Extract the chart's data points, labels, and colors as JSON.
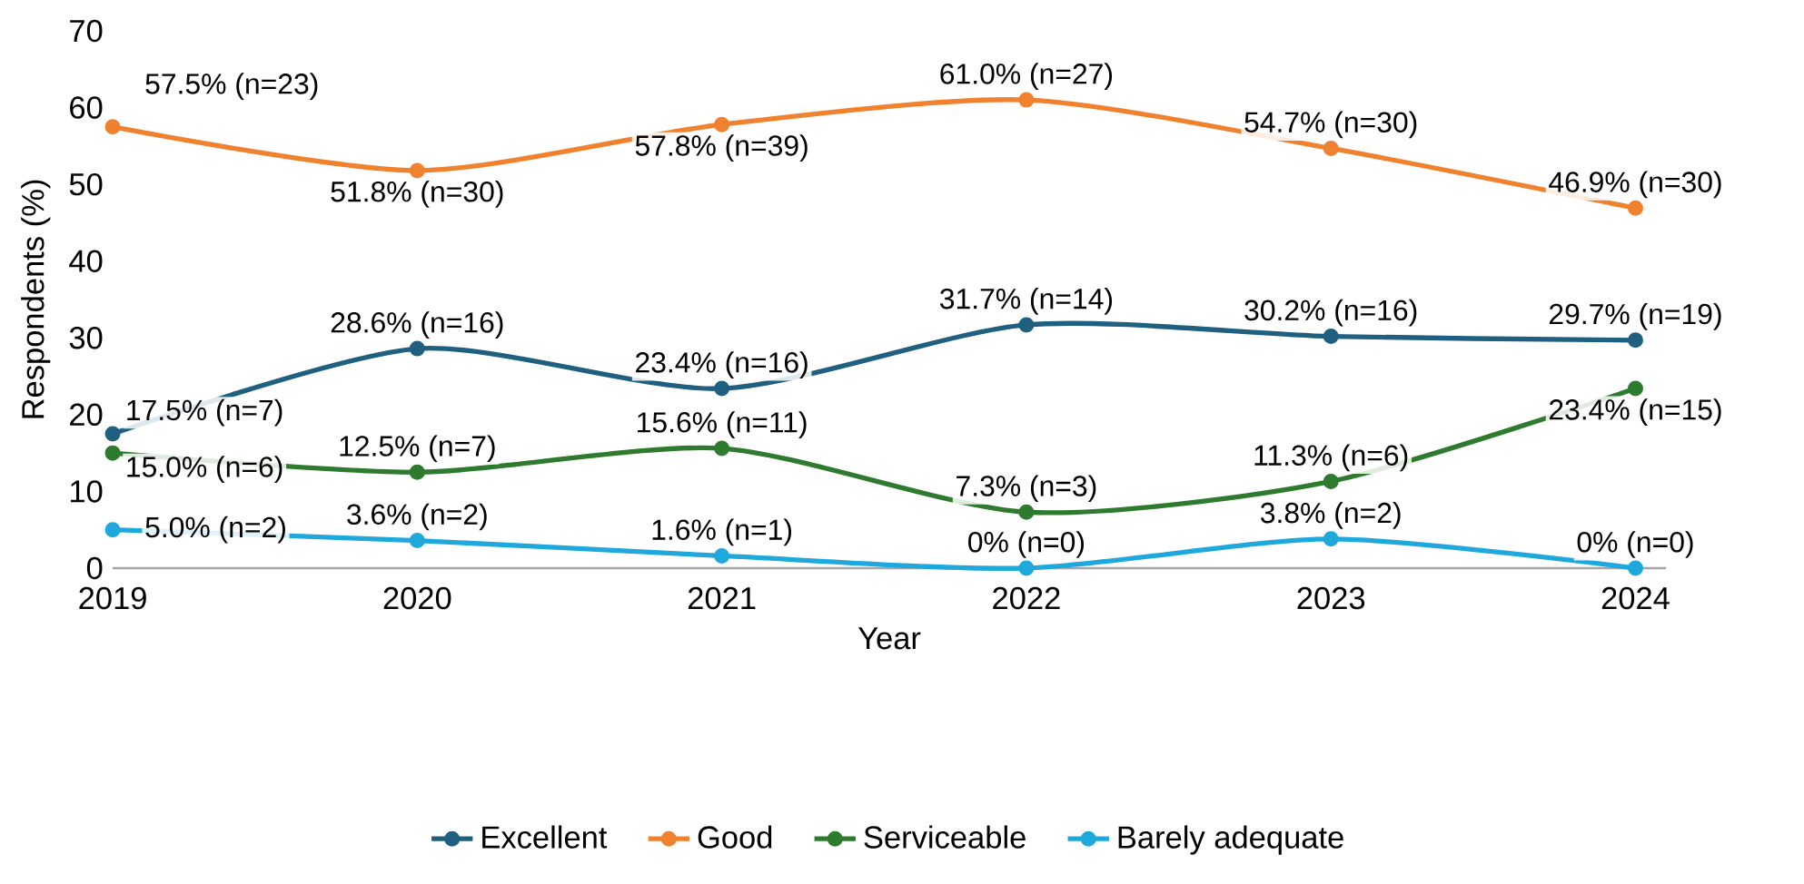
{
  "chart_data": {
    "type": "line",
    "xlabel": "Year",
    "ylabel": "Respondents (%)",
    "categories": [
      "2019",
      "2020",
      "2021",
      "2022",
      "2023",
      "2024"
    ],
    "ylim": [
      0,
      70
    ],
    "yticks": [
      0,
      10,
      20,
      30,
      40,
      50,
      60,
      70
    ],
    "legend": "bottom",
    "marker": "circle",
    "line_style": "solid",
    "series": [
      {
        "name": "Excellent",
        "color": "#1f5f7f",
        "values": [
          17.5,
          28.6,
          23.4,
          31.7,
          30.2,
          29.7
        ],
        "value_labels": [
          "17.5% (n=7)",
          "28.6% (n=16)",
          "23.4% (n=16)",
          "31.7% (n=14)",
          "30.2% (n=16)",
          "29.7% (n=19)"
        ]
      },
      {
        "name": "Good",
        "color": "#f0812e",
        "values": [
          57.5,
          51.8,
          57.8,
          61.0,
          54.7,
          46.9
        ],
        "value_labels": [
          "57.5% (n=23)",
          "51.8% (n=30)",
          "57.8% (n=39)",
          "61.0% (n=27)",
          "54.7% (n=30)",
          "46.9% (n=30)"
        ]
      },
      {
        "name": "Serviceable",
        "color": "#2e7a2e",
        "values": [
          15.0,
          12.5,
          15.6,
          7.3,
          11.3,
          23.4
        ],
        "value_labels": [
          "15.0% (n=6)",
          "12.5% (n=7)",
          "15.6% (n=11)",
          "7.3% (n=3)",
          "11.3% (n=6)",
          "23.4% (n=15)"
        ]
      },
      {
        "name": "Barely adequate",
        "color": "#1ea8dc",
        "values": [
          5.0,
          3.6,
          1.6,
          0,
          3.8,
          0
        ],
        "value_labels": [
          "5.0% (n=2)",
          "3.6% (n=2)",
          "1.6% (n=1)",
          "0% (n=0)",
          "3.8% (n=2)",
          "0% (n=0)"
        ]
      }
    ]
  }
}
